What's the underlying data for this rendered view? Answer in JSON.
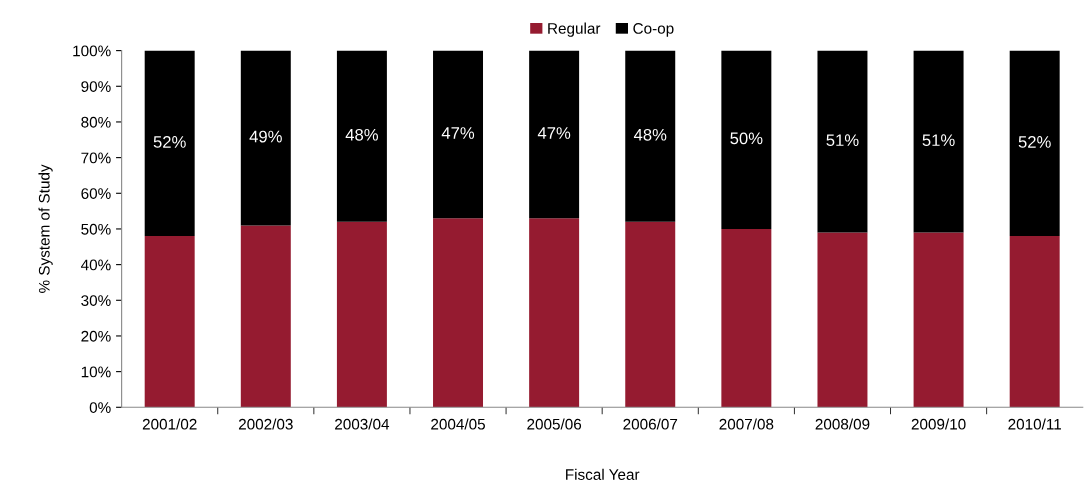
{
  "chart_data": {
    "type": "bar",
    "stacked": true,
    "xlabel": "Fiscal Year",
    "ylabel": "% System of Study",
    "categories": [
      "2001/02",
      "2002/03",
      "2003/04",
      "2004/05",
      "2005/06",
      "2006/07",
      "2007/08",
      "2008/09",
      "2009/10",
      "2010/11"
    ],
    "series": [
      {
        "name": "Regular",
        "color": "#951b30",
        "values": [
          48,
          51,
          52,
          53,
          53,
          52,
          50,
          49,
          49,
          48
        ]
      },
      {
        "name": "Co-op",
        "color": "#000000",
        "values": [
          52,
          49,
          48,
          47,
          47,
          48,
          50,
          51,
          51,
          52
        ],
        "value_labels": [
          "52%",
          "49%",
          "48%",
          "47%",
          "47%",
          "48%",
          "50%",
          "51%",
          "51%",
          "52%"
        ]
      }
    ],
    "ylim": [
      0,
      100
    ],
    "yticks": [
      {
        "value": 0,
        "label": "0%"
      },
      {
        "value": 10,
        "label": "10%"
      },
      {
        "value": 20,
        "label": "20%"
      },
      {
        "value": 30,
        "label": "30%"
      },
      {
        "value": 40,
        "label": "40%"
      },
      {
        "value": 50,
        "label": "50%"
      },
      {
        "value": 60,
        "label": "60%"
      },
      {
        "value": 70,
        "label": "70%"
      },
      {
        "value": 80,
        "label": "80%"
      },
      {
        "value": 90,
        "label": "90%"
      },
      {
        "value": 100,
        "label": "100%"
      }
    ],
    "legend": "top",
    "grid": false
  }
}
